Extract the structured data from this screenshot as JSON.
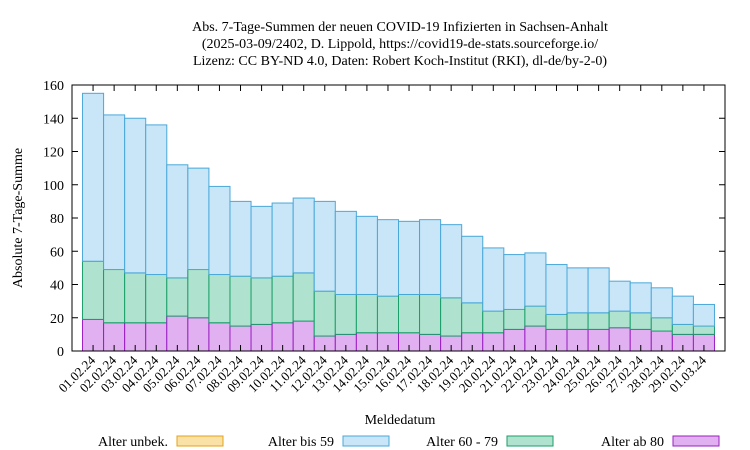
{
  "chart_data": {
    "type": "bar",
    "stacked": true,
    "title_lines": [
      "Abs. 7-Tage-Summen der neuen COVID-19 Infizierten in Sachsen-Anhalt",
      "(2025-03-09/2402, D. Lippold, https://covid19-de-stats.sourceforge.io/",
      "Lizenz: CC BY-ND 4.0, Daten: Robert Koch-Institut (RKI), dl-de/by-2-0)"
    ],
    "xlabel": "Meldedatum",
    "ylabel": "Absolute 7-Tage-Summe",
    "ylim": [
      0,
      160
    ],
    "yticks": [
      0,
      20,
      40,
      60,
      80,
      100,
      120,
      140,
      160
    ],
    "grid": false,
    "legend_position": "bottom",
    "categories": [
      "01.02.24",
      "02.02.24",
      "03.02.24",
      "04.02.24",
      "05.02.24",
      "06.02.24",
      "07.02.24",
      "08.02.24",
      "09.02.24",
      "10.02.24",
      "11.02.24",
      "12.02.24",
      "13.02.24",
      "14.02.24",
      "15.02.24",
      "16.02.24",
      "17.02.24",
      "18.02.24",
      "19.02.24",
      "20.02.24",
      "21.02.24",
      "22.02.24",
      "23.02.24",
      "24.02.24",
      "25.02.24",
      "26.02.24",
      "27.02.24",
      "28.02.24",
      "29.02.24",
      "01.03.24"
    ],
    "series": [
      {
        "name": "Alter ab 80",
        "fill": "#e0b0f0",
        "stroke": "#9a1ec2",
        "values": [
          19,
          17,
          17,
          17,
          21,
          20,
          17,
          15,
          16,
          17,
          18,
          9,
          10,
          11,
          11,
          11,
          10,
          9,
          11,
          11,
          13,
          15,
          13,
          13,
          13,
          14,
          13,
          12,
          10,
          10
        ]
      },
      {
        "name": "Alter 60 - 79",
        "fill": "#b0e3cf",
        "stroke": "#1a9e6a",
        "values": [
          35,
          32,
          30,
          29,
          23,
          29,
          29,
          30,
          28,
          28,
          29,
          27,
          24,
          23,
          22,
          23,
          24,
          23,
          18,
          13,
          12,
          12,
          9,
          10,
          10,
          10,
          10,
          8,
          6,
          5
        ]
      },
      {
        "name": "Alter bis 59",
        "fill": "#c8e6f8",
        "stroke": "#4aa8d8",
        "values": [
          101,
          93,
          93,
          90,
          68,
          61,
          53,
          45,
          43,
          44,
          45,
          54,
          50,
          47,
          46,
          44,
          45,
          44,
          40,
          38,
          33,
          32,
          30,
          27,
          27,
          18,
          18,
          18,
          17,
          13
        ]
      },
      {
        "name": "Alter unbek.",
        "fill": "#fae2a6",
        "stroke": "#e4a11b",
        "values": [
          0,
          0,
          0,
          0,
          0,
          0,
          0,
          0,
          0,
          0,
          0,
          0,
          0,
          0,
          0,
          0,
          0,
          0,
          0,
          0,
          0,
          0,
          0,
          0,
          0,
          0,
          0,
          0,
          0,
          0
        ]
      }
    ],
    "legend_order": [
      "Alter unbek.",
      "Alter bis 59",
      "Alter 60 - 79",
      "Alter ab 80"
    ]
  }
}
